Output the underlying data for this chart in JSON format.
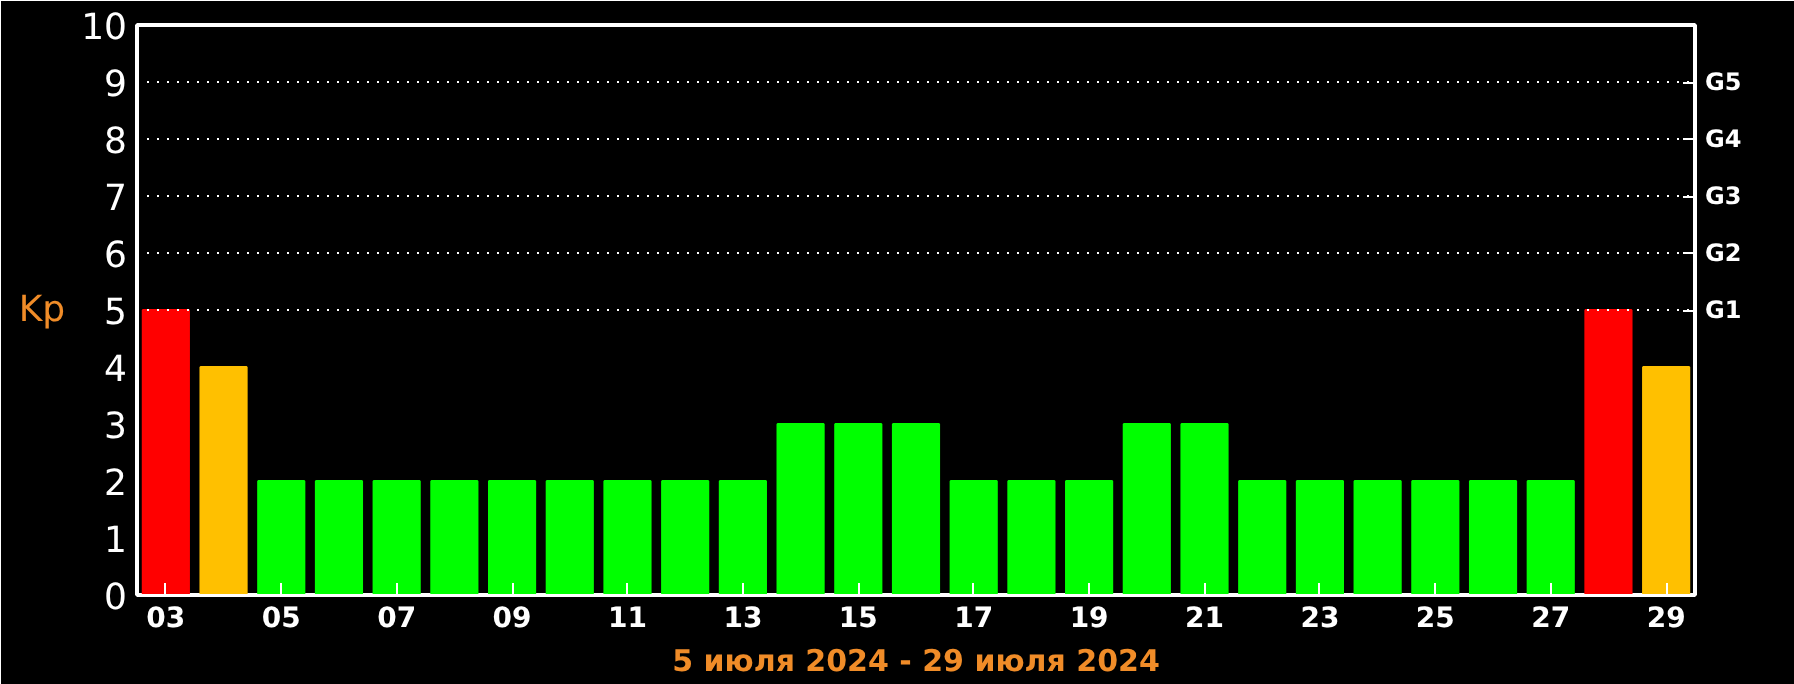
{
  "chart_data": {
    "type": "bar",
    "xlabel": "5 июля 2024 - 29 июля 2024",
    "ylabel": "Kp",
    "categories": [
      "03",
      null,
      "05",
      null,
      "07",
      null,
      "09",
      null,
      "11",
      null,
      "13",
      null,
      "15",
      null,
      "17",
      null,
      "19",
      null,
      "21",
      null,
      "23",
      null,
      "25",
      null,
      "27",
      null,
      "29"
    ],
    "values": [
      5,
      4,
      2,
      2,
      2,
      2,
      2,
      2,
      2,
      2,
      2,
      3,
      3,
      3,
      2,
      2,
      2,
      3,
      3,
      2,
      2,
      2,
      2,
      2,
      2,
      5,
      4
    ],
    "colors": [
      "#ff0000",
      "#ffc000",
      "#00ff00",
      "#00ff00",
      "#00ff00",
      "#00ff00",
      "#00ff00",
      "#00ff00",
      "#00ff00",
      "#00ff00",
      "#00ff00",
      "#00ff00",
      "#00ff00",
      "#00ff00",
      "#00ff00",
      "#00ff00",
      "#00ff00",
      "#00ff00",
      "#00ff00",
      "#00ff00",
      "#00ff00",
      "#00ff00",
      "#00ff00",
      "#00ff00",
      "#00ff00",
      "#ff0000",
      "#ffc000"
    ],
    "ylim": [
      0,
      10
    ],
    "yticks": [
      0,
      1,
      2,
      3,
      4,
      5,
      6,
      7,
      8,
      9,
      10
    ],
    "ref_lines": [
      {
        "axis": "y",
        "value": 5,
        "label": "G1",
        "line_style": "dotted"
      },
      {
        "axis": "y",
        "value": 6,
        "label": "G2",
        "line_style": "dotted"
      },
      {
        "axis": "y",
        "value": 7,
        "label": "G3",
        "line_style": "dotted"
      },
      {
        "axis": "y",
        "value": 8,
        "label": "G4",
        "line_style": "dotted"
      },
      {
        "axis": "y",
        "value": 9,
        "label": "G5",
        "line_style": "dotted"
      }
    ]
  }
}
